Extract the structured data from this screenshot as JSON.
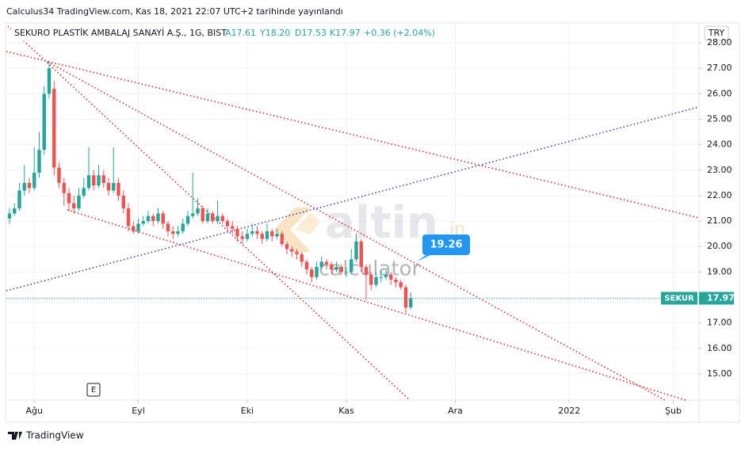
{
  "published": "Calculus34 TradingView.com, Kas 18, 2021 22:07 UTC+2 tarihinde yayınlandı",
  "currency": "TRY",
  "event_marker": "E",
  "footer": "TradingView",
  "chart_data": {
    "type": "candlestick",
    "title": "SEKURO PLASTİK AMBALAJ SANAYİ A.Ş., 1G, BIST",
    "ohlc_header": [
      "A17.61",
      "Y18.20",
      "D17.53",
      "K17.97",
      "+0.36 (+2.04%)"
    ],
    "watermark": [
      "altin",
      ".in",
      "calculator"
    ],
    "callout": "19.26",
    "symbol_label": "SEKUR",
    "up_color": "#26a69a",
    "down_color": "#ef5350",
    "grid": true,
    "ylim": [
      13.97,
      28.75
    ],
    "yticks": [
      {
        "value": 15,
        "label": "15.00"
      },
      {
        "value": 16,
        "label": "16.00"
      },
      {
        "value": 17,
        "label": "17.00"
      },
      {
        "value": 18,
        "label": "18.00"
      },
      {
        "value": 19,
        "label": "19.00"
      },
      {
        "value": 20,
        "label": "20.00"
      },
      {
        "value": 21,
        "label": "21.00"
      },
      {
        "value": 22,
        "label": "22.00"
      },
      {
        "value": 23,
        "label": "23.00"
      },
      {
        "value": 24,
        "label": "24.00"
      },
      {
        "value": 25,
        "label": "25.00"
      },
      {
        "value": 26,
        "label": "26.00"
      },
      {
        "value": 27,
        "label": "27.00"
      },
      {
        "value": 28,
        "label": "28.00"
      }
    ],
    "xlim": [
      -0.64,
      139.2
    ],
    "xticks": [
      {
        "value": 5,
        "label": "Ağu"
      },
      {
        "value": 26,
        "label": "Eyl"
      },
      {
        "value": 48,
        "label": "Eki"
      },
      {
        "value": 68,
        "label": "Kas"
      },
      {
        "value": 90,
        "label": "Ara"
      },
      {
        "value": 113,
        "label": "2022"
      },
      {
        "value": 134,
        "label": "Şub"
      }
    ],
    "open": [
      21.1,
      21.3,
      21.5,
      22.2,
      22.5,
      22.3,
      22.9,
      23.8,
      26.0,
      26.2,
      23.1,
      22.5,
      22.1,
      21.7,
      21.5,
      22.0,
      22.3,
      22.8,
      22.4,
      22.8,
      22.5,
      22.2,
      22.5,
      22.0,
      21.5,
      20.8,
      20.6,
      20.9,
      21.0,
      21.2,
      21.0,
      21.3,
      20.9,
      20.6,
      20.5,
      20.6,
      20.9,
      21.2,
      21.3,
      21.5,
      21.0,
      21.3,
      21.0,
      21.2,
      21.0,
      20.8,
      20.7,
      20.4,
      20.3,
      20.5,
      20.6,
      20.5,
      20.3,
      20.6,
      20.4,
      20.5,
      20.1,
      19.9,
      19.8,
      19.7,
      19.4,
      19.1,
      18.8,
      19.2,
      19.4,
      19.3,
      19.1,
      19.2,
      19.0,
      19.0,
      19.5,
      20.2,
      19.2,
      18.9,
      18.5,
      18.8,
      18.8,
      18.9,
      18.7,
      18.6,
      18.4,
      17.61
    ],
    "high": [
      21.5,
      21.7,
      22.5,
      23.2,
      22.7,
      23.9,
      24.5,
      26.3,
      27.3,
      26.5,
      23.3,
      22.7,
      22.3,
      22.0,
      22.3,
      22.7,
      23.9,
      23.0,
      23.2,
      23.0,
      22.7,
      23.9,
      22.7,
      22.2,
      21.7,
      21.0,
      21.1,
      21.2,
      21.4,
      21.3,
      21.5,
      21.4,
      21.0,
      20.8,
      20.8,
      21.1,
      21.4,
      22.9,
      21.9,
      21.6,
      21.5,
      21.4,
      21.8,
      21.3,
      21.1,
      21.0,
      20.8,
      20.6,
      20.7,
      20.9,
      20.8,
      20.6,
      20.9,
      20.7,
      20.7,
      20.6,
      20.2,
      20.0,
      19.9,
      19.8,
      19.5,
      19.2,
      19.4,
      19.6,
      19.5,
      19.4,
      19.4,
      19.3,
      19.2,
      19.9,
      20.5,
      20.3,
      19.3,
      19.0,
      19.0,
      19.1,
      19.1,
      19.0,
      18.8,
      18.7,
      18.5,
      18.2
    ],
    "low": [
      20.9,
      21.2,
      21.4,
      22.0,
      22.1,
      22.2,
      22.7,
      23.6,
      25.8,
      22.8,
      22.3,
      21.6,
      21.4,
      21.3,
      21.4,
      21.9,
      22.2,
      22.2,
      22.3,
      22.3,
      22.0,
      22.1,
      21.8,
      21.3,
      20.6,
      20.5,
      20.5,
      20.8,
      20.9,
      20.8,
      20.9,
      20.7,
      20.4,
      20.3,
      20.4,
      20.5,
      20.8,
      21.1,
      21.2,
      20.9,
      20.9,
      20.9,
      20.9,
      20.9,
      20.6,
      20.5,
      20.2,
      20.1,
      20.2,
      20.4,
      20.3,
      20.1,
      20.2,
      20.2,
      20.3,
      20.0,
      19.7,
      19.6,
      19.5,
      19.2,
      18.9,
      18.6,
      18.7,
      19.1,
      19.1,
      18.9,
      19.0,
      18.9,
      18.8,
      18.9,
      19.4,
      19.0,
      17.9,
      18.3,
      18.4,
      18.6,
      18.7,
      18.5,
      18.4,
      18.3,
      17.4,
      17.53
    ],
    "close": [
      21.3,
      21.5,
      22.2,
      22.5,
      22.3,
      22.9,
      23.8,
      26.0,
      27.0,
      23.1,
      22.5,
      22.1,
      21.7,
      21.5,
      22.0,
      22.3,
      22.8,
      22.4,
      22.8,
      22.5,
      22.2,
      22.5,
      22.0,
      21.5,
      20.8,
      20.6,
      20.9,
      21.0,
      21.2,
      21.0,
      21.3,
      20.9,
      20.6,
      20.5,
      20.6,
      20.9,
      21.2,
      21.3,
      21.5,
      21.0,
      21.3,
      21.0,
      21.2,
      21.0,
      20.8,
      20.7,
      20.4,
      20.3,
      20.5,
      20.6,
      20.5,
      20.3,
      20.6,
      20.4,
      20.5,
      20.1,
      19.9,
      19.8,
      19.7,
      19.4,
      19.1,
      18.8,
      19.2,
      19.4,
      19.3,
      19.1,
      19.2,
      19.0,
      19.0,
      19.5,
      20.2,
      19.2,
      18.9,
      18.5,
      18.8,
      18.8,
      18.9,
      18.7,
      18.6,
      18.4,
      17.6,
      17.97
    ]
  }
}
